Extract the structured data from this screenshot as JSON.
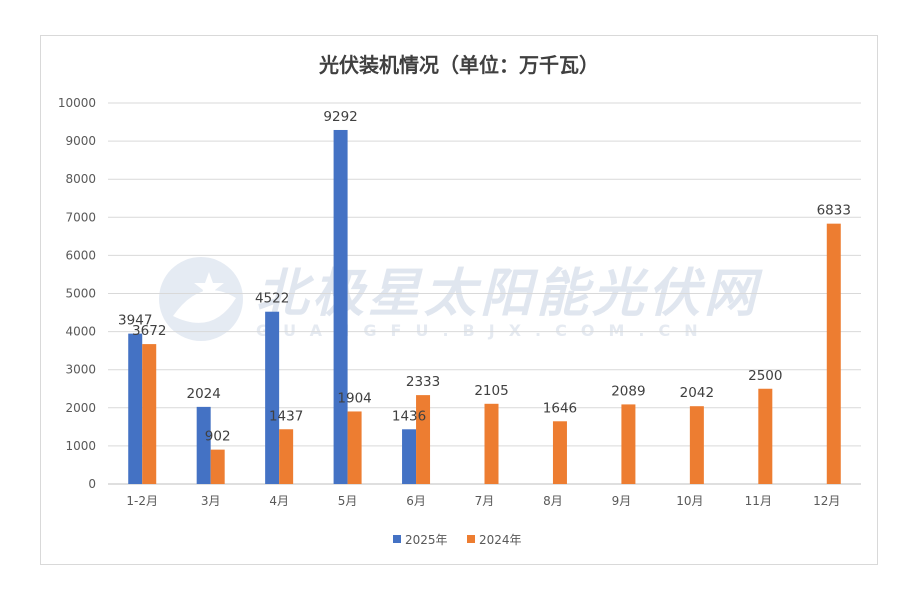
{
  "chart_data": {
    "type": "bar",
    "title": "光伏装机情况（单位：万千瓦）",
    "categories": [
      "1-2月",
      "3月",
      "4月",
      "5月",
      "6月",
      "7月",
      "8月",
      "9月",
      "10月",
      "11月",
      "12月"
    ],
    "series": [
      {
        "name": "2025年",
        "color": "#4472C4",
        "values": [
          3947,
          2024,
          4522,
          9292,
          1436,
          null,
          null,
          null,
          null,
          null,
          null
        ]
      },
      {
        "name": "2024年",
        "color": "#ED7D31",
        "values": [
          3672,
          902,
          1437,
          1904,
          2333,
          2105,
          1646,
          2089,
          2042,
          2500,
          6833
        ]
      }
    ],
    "ylim": [
      0,
      10000
    ],
    "yticks": [
      0,
      1000,
      2000,
      3000,
      4000,
      5000,
      6000,
      7000,
      8000,
      9000,
      10000
    ],
    "grid": true,
    "legend_position": "bottom"
  },
  "watermark": {
    "text": "北极星太阳能光伏网",
    "subtext": "GUANGFU.BJX.COM.CN",
    "icon": "star-logo-icon"
  },
  "colors": {
    "grid": "#d9d9d9",
    "axis": "#bfbfbf",
    "frame": "#d9d9d9"
  }
}
